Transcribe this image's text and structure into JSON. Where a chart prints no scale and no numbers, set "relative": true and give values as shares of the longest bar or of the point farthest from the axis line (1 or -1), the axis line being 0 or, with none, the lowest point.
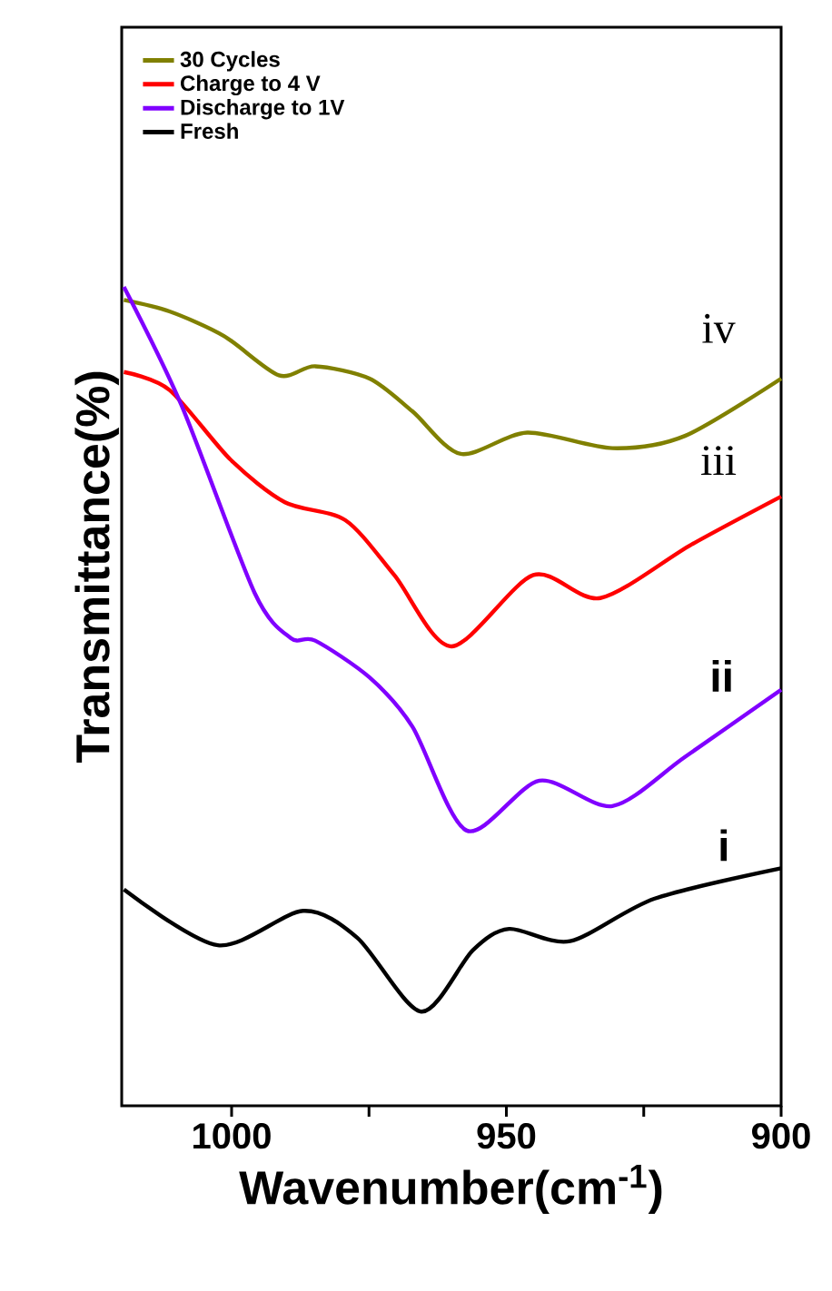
{
  "chart_data": {
    "type": "line",
    "relative": true,
    "xlabel": "Wavenumber(cm$^{-1}$)",
    "ylabel": "Transmittance(%)",
    "xlim": [
      1020,
      900
    ],
    "xticks": [
      1000,
      {
        "value": 975,
        "label": null
      },
      950,
      {
        "value": 925,
        "label": null
      },
      900
    ],
    "tick_labels": "x",
    "legend": "top left",
    "grid": false,
    "marker": "none",
    "line_style": "solid",
    "series": [
      {
        "name": "30 Cycles",
        "color": "#808000",
        "x": [
          1019.6,
          1011.3,
          1001.4,
          991.4,
          984.8,
          974.9,
          967.1,
          958.3,
          946.2,
          930.7,
          917.5,
          900
        ],
        "values": [
          0.984,
          0.97,
          0.94,
          0.892,
          0.903,
          0.888,
          0.848,
          0.796,
          0.822,
          0.803,
          0.818,
          0.888
        ]
      },
      {
        "name": "Charge to 4 V",
        "color": "#ff0000",
        "x": [
          1019.6,
          1011.3,
          1000.2,
          990.3,
          979.3,
          970.4,
          960.0,
          945.1,
          932.9,
          916.4,
          900
        ],
        "values": [
          0.896,
          0.874,
          0.789,
          0.737,
          0.715,
          0.648,
          0.561,
          0.648,
          0.62,
          0.685,
          0.744
        ]
      },
      {
        "name": "Discharge to 1V",
        "color": "#8000ff",
        "x": [
          1019.6,
          1009.1,
          995.8,
          989.2,
          984.8,
          974.9,
          967.1,
          957.2,
          944.0,
          930.7,
          917.5,
          900
        ],
        "values": [
          1.0,
          0.855,
          0.626,
          0.571,
          0.568,
          0.523,
          0.463,
          0.336,
          0.397,
          0.366,
          0.426,
          0.508
        ]
      },
      {
        "name": "Fresh",
        "color": "#000000",
        "x": [
          1019.6,
          1002.5,
          987.0,
          977.1,
          965.5,
          956.1,
          949.5,
          938.4,
          923.0,
          900
        ],
        "values": [
          0.264,
          0.196,
          0.238,
          0.205,
          0.115,
          0.19,
          0.216,
          0.201,
          0.253,
          0.29
        ]
      }
    ],
    "annotations": [
      "iv",
      "iii",
      "ii",
      "i"
    ]
  }
}
